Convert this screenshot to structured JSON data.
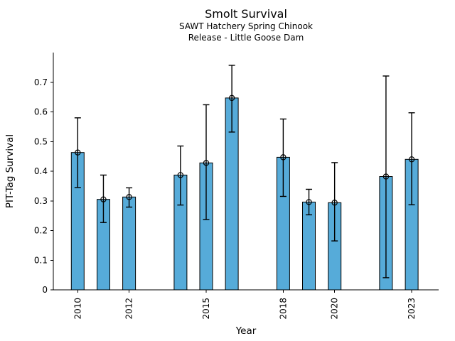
{
  "header": {
    "title": "Smolt Survival",
    "subtitle1": "SAWT Hatchery Spring Chinook",
    "subtitle2": "Release - Little Goose Dam"
  },
  "chart_data": {
    "type": "bar",
    "title": "Smolt Survival",
    "subtitles": [
      "SAWT Hatchery Spring Chinook",
      "Release - Little Goose Dam"
    ],
    "xlabel": "Year",
    "ylabel": "PIT-Tag Survival",
    "x": [
      2010,
      2011,
      2012,
      2014,
      2015,
      2016,
      2018,
      2019,
      2020,
      2022,
      2023
    ],
    "values": [
      0.463,
      0.305,
      0.313,
      0.387,
      0.428,
      0.647,
      0.447,
      0.296,
      0.294,
      0.382,
      0.44
    ],
    "error_low": [
      0.345,
      0.227,
      0.279,
      0.286,
      0.237,
      0.532,
      0.315,
      0.253,
      0.165,
      0.041,
      0.287
    ],
    "error_high": [
      0.58,
      0.387,
      0.344,
      0.485,
      0.624,
      0.757,
      0.576,
      0.339,
      0.429,
      0.721,
      0.597
    ],
    "missing_years": [
      2013,
      2017,
      2021
    ],
    "xticks": [
      2010,
      2012,
      2015,
      2018,
      2020,
      2023
    ],
    "xtick_labels": [
      "2010",
      "2012",
      "2015",
      "2018",
      "2020",
      "2023"
    ],
    "yticks": [
      0,
      0.1,
      0.2,
      0.3,
      0.4,
      0.5,
      0.6,
      0.7
    ],
    "ytick_labels": [
      "0",
      "0.1",
      "0.2",
      "0.3",
      "0.4",
      "0.5",
      "0.6",
      "0.7"
    ],
    "xlim": [
      2009.05,
      2024.05
    ],
    "ylim": [
      0,
      0.8
    ],
    "grid": false,
    "legend": false,
    "bar_color": "#56ABD9",
    "bar_edge_color": "#000000",
    "error_bar_color": "#000000",
    "axis_color": "#000000",
    "marker": "open-circle"
  }
}
